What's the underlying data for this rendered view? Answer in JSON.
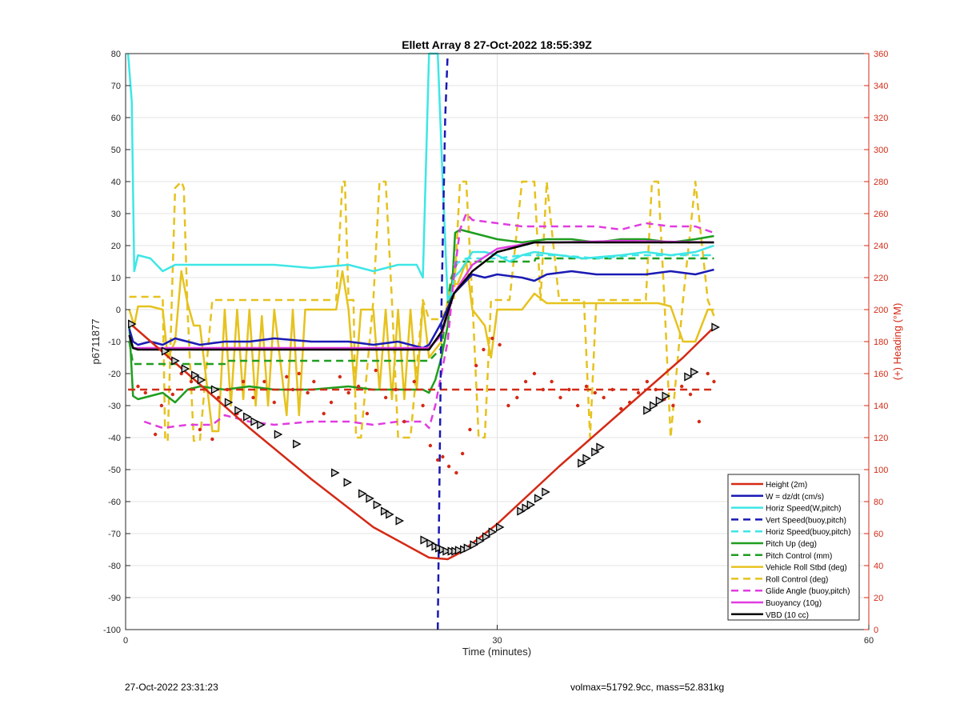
{
  "footer": {
    "timestamp": "27-Oct-2022 23:31:23",
    "vol_mass": "volmax=51792.9cc, mass=52.831kg"
  },
  "chart_data": {
    "type": "line",
    "title": "Ellett Array 8 27-Oct-2022 18:55:39Z",
    "xlabel": "Time (minutes)",
    "ylabel": "p6711877",
    "y2label": "(+) Heading (°M)",
    "xlim": [
      0,
      60
    ],
    "ylim": [
      -100,
      80
    ],
    "y2lim": [
      0,
      360
    ],
    "xticks": [
      0,
      30,
      60
    ],
    "yticks": [
      80,
      70,
      60,
      50,
      40,
      30,
      20,
      10,
      0,
      -10,
      -20,
      -30,
      -40,
      -50,
      -60,
      -70,
      -80,
      -90,
      -100
    ],
    "y2ticks": [
      360,
      340,
      320,
      300,
      280,
      260,
      240,
      220,
      200,
      180,
      160,
      140,
      120,
      100,
      80,
      60,
      40,
      20,
      0
    ],
    "grid": true,
    "legend_position": "bottom-right",
    "colors": {
      "red": "#d42a16",
      "blue": "#1a1ab4",
      "cyan": "#3ee6e6",
      "green": "#1f9e1f",
      "yellow": "#e6c21e",
      "magenta": "#e03ce0",
      "black": "#000000",
      "right_axis": "#d42a16"
    },
    "series": [
      {
        "name": "Height (2m)",
        "color": "#d42a16",
        "dash": "solid",
        "x": [
          0.4,
          5,
          10,
          15,
          20,
          24.5,
          26,
          27,
          30,
          35,
          40,
          45,
          47.5
        ],
        "y": [
          -4.5,
          -20,
          -37,
          -53,
          -68,
          -77.5,
          -78,
          -76,
          -67,
          -49,
          -32,
          -15,
          -5.5
        ]
      },
      {
        "name": "W = dz/dt (cm/s)",
        "color": "#1a1ab4",
        "dash": "solid",
        "x": [
          0.3,
          0.6,
          1,
          2,
          3,
          4,
          5,
          6,
          8,
          10,
          12,
          15,
          18,
          20,
          22,
          24,
          24.5,
          25.5,
          26.5,
          27.5,
          28,
          29,
          30,
          32,
          33,
          34,
          36,
          38,
          40,
          42,
          44,
          46,
          47.5
        ],
        "y": [
          -6,
          -10,
          -11,
          -10,
          -11,
          -9,
          -10,
          -11,
          -10,
          -10,
          -9,
          -10,
          -10,
          -11,
          -10,
          -12,
          -11,
          -4,
          5,
          9,
          11,
          10,
          11,
          10,
          9,
          11,
          12,
          11,
          11,
          11,
          12,
          11,
          12.5
        ]
      },
      {
        "name": "Horiz Speed(W,pitch)",
        "color": "#3ee6e6",
        "dash": "solid",
        "x": [
          0.2,
          0.5,
          0.7,
          1,
          2,
          3,
          4,
          6,
          8,
          10,
          12,
          15,
          18,
          20,
          22,
          23.5,
          24,
          24.5,
          24.8,
          25.2,
          25.6,
          26,
          26.3,
          26.5,
          27,
          27.5,
          28,
          29,
          30,
          31,
          32,
          33,
          35,
          37,
          40,
          42,
          44,
          46,
          47.5
        ],
        "y": [
          80,
          65,
          12,
          17,
          16,
          12,
          14,
          14,
          14,
          14,
          14,
          13,
          14,
          12,
          14,
          14,
          10,
          80,
          80,
          80,
          40,
          3,
          5,
          10,
          12,
          15,
          18,
          18,
          17,
          15,
          17,
          18,
          17,
          16,
          17,
          18,
          17,
          18,
          20
        ]
      },
      {
        "name": "Vert Speed(buoy,pitch)",
        "color": "#1a1ab4",
        "dash": "dashed",
        "x": [
          25.2,
          25.5,
          25.8,
          26
        ],
        "y": [
          -100,
          0,
          60,
          80
        ]
      },
      {
        "name": "Horiz Speed(buoy,pitch)",
        "color": "#3ee6e6",
        "dash": "dashed",
        "x": [
          26.5,
          27.5,
          28.5,
          30,
          32,
          35,
          38,
          41,
          44,
          47.5
        ],
        "y": [
          14,
          16,
          16,
          16,
          17,
          17,
          16,
          17,
          17,
          17
        ]
      },
      {
        "name": "Pitch Up (deg)",
        "color": "#1f9e1f",
        "dash": "solid",
        "x": [
          0.3,
          0.6,
          1,
          2,
          3,
          4,
          5,
          6,
          8,
          10,
          12,
          15,
          18,
          20,
          22,
          24,
          24.5,
          25,
          25.5,
          26,
          26.4,
          26.6,
          27,
          28,
          29,
          30,
          32,
          34,
          36,
          38,
          40,
          42,
          44,
          46,
          47.5
        ],
        "y": [
          -5,
          -27,
          -28,
          -27,
          -26,
          -29,
          -25,
          -24,
          -25,
          -24,
          -25,
          -25,
          -24,
          -25,
          -25,
          -25,
          -26,
          -22,
          -15,
          -5,
          10,
          24,
          25,
          24,
          23,
          22,
          21,
          22,
          22,
          21,
          22,
          22,
          21,
          22,
          23
        ]
      },
      {
        "name": "Pitch Control (mm)",
        "color": "#1f9e1f",
        "dash": "dashed",
        "x": [
          0.3,
          0.6,
          8,
          8.1,
          24.5,
          25.5,
          26.3,
          26.8,
          27,
          30,
          33,
          33.1,
          40,
          47.5
        ],
        "y": [
          -10,
          -17,
          -17,
          -16,
          -16,
          -12,
          10,
          15,
          15,
          15,
          15,
          16,
          16,
          16
        ]
      },
      {
        "name": "Vehicle Roll Stbd (deg)",
        "color": "#e6c21e",
        "dash": "solid",
        "x": [
          0.3,
          0.7,
          1,
          2,
          3,
          3.4,
          4,
          4.5,
          5,
          5.5,
          6,
          7,
          7.5,
          8,
          8.5,
          9,
          9.5,
          10,
          10.5,
          11,
          11.5,
          12,
          13,
          13.5,
          14,
          14.5,
          15,
          16,
          17,
          17.5,
          18,
          18.5,
          19,
          20,
          20.5,
          21,
          21.5,
          22,
          22.5,
          23,
          23.5,
          24,
          24.5,
          25.5,
          26.2,
          26.8,
          27.5,
          28,
          29,
          29.5,
          30,
          31,
          32,
          33,
          34,
          35,
          36,
          37,
          38,
          39,
          40,
          41,
          42,
          43,
          44,
          45,
          46,
          47,
          47.5
        ],
        "y": [
          0,
          -5,
          1,
          1,
          0,
          -15,
          -10,
          12,
          2,
          -5,
          -5,
          -38,
          -38,
          0,
          -30,
          0,
          -28,
          0,
          -30,
          -2,
          -30,
          0,
          -33,
          0,
          -33,
          0,
          0,
          0,
          0,
          12,
          0,
          -25,
          0,
          0,
          -25,
          0,
          -28,
          0,
          -28,
          0,
          -25,
          2,
          -15,
          -10,
          8,
          8,
          15,
          0,
          -5,
          -15,
          0,
          0,
          0,
          5,
          2,
          2,
          2,
          2,
          2,
          2,
          2,
          2,
          2,
          2,
          1,
          -10,
          -10,
          0,
          0
        ]
      },
      {
        "name": "Roll Control (deg)",
        "color": "#e6c21e",
        "dash": "dashed",
        "x": [
          0.3,
          1,
          1.5,
          3,
          3.2,
          3.4,
          4,
          4.5,
          4.7,
          5,
          5.5,
          6,
          7,
          7.5,
          8,
          8.5,
          9,
          10,
          11,
          12,
          13,
          14,
          15,
          16,
          17,
          17.5,
          17.7,
          18,
          18.4,
          18.6,
          19,
          20,
          20.5,
          21,
          21.5,
          22,
          23,
          24,
          24.5,
          25.5,
          26.2,
          26.5,
          27,
          27.5,
          28,
          28.5,
          29,
          29.5,
          30,
          31,
          32,
          33,
          33.5,
          34,
          35,
          36,
          37,
          37.5,
          38,
          39,
          40,
          41,
          42,
          42.5,
          43,
          43.5,
          44,
          45,
          46,
          47,
          47.5
        ],
        "y": [
          4,
          4,
          4,
          4,
          -41,
          -41,
          38,
          40,
          38,
          0,
          -41,
          -41,
          3,
          3,
          3,
          3,
          3,
          3,
          3,
          3,
          3,
          3,
          3,
          3,
          3,
          40,
          40,
          3,
          3,
          -40,
          -40,
          3,
          40,
          40,
          3,
          -40,
          -40,
          3,
          -3,
          -3,
          3,
          3,
          40,
          40,
          3,
          -40,
          -40,
          3,
          3,
          3,
          40,
          40,
          3,
          40,
          3,
          3,
          3,
          -40,
          3,
          3,
          3,
          3,
          3,
          40,
          40,
          3,
          -40,
          3,
          40,
          3,
          -2
        ]
      },
      {
        "name": "Glide Angle (buoy,pitch)",
        "color": "#e03ce0",
        "dash": "dashed",
        "x": [
          1.5,
          3,
          5,
          7,
          8,
          10,
          12,
          15,
          18,
          20,
          22,
          24,
          24.5,
          25,
          25.5,
          26,
          26.5,
          27,
          27.5,
          28,
          30,
          32,
          34,
          36,
          38,
          40,
          42,
          44,
          46,
          47.5
        ],
        "y": [
          -35,
          -37,
          -36,
          -36,
          -33,
          -35,
          -36,
          -35,
          -35,
          -36,
          -35,
          -35,
          -37,
          -30,
          -20,
          -10,
          10,
          25,
          30,
          28,
          27,
          26,
          26,
          26,
          26,
          25,
          27,
          26,
          26,
          24
        ]
      },
      {
        "name": "Buoyancy (10g)",
        "color": "#e03ce0",
        "dash": "solid",
        "x": [
          0.3,
          0.6,
          1,
          5,
          10,
          15,
          20,
          24.5,
          25.5,
          26.5,
          28,
          30,
          33,
          35,
          40,
          47.5
        ],
        "y": [
          -8,
          -12,
          -12,
          -12,
          -12,
          -12,
          -12,
          -12,
          -8,
          5,
          14,
          19,
          21,
          21,
          21.5,
          21
        ]
      },
      {
        "name": "VBD (10 cc)",
        "color": "#000000",
        "dash": "solid",
        "x": [
          0.3,
          0.6,
          1,
          5,
          10,
          15,
          20,
          24.5,
          25.5,
          26.5,
          28,
          29,
          30,
          31,
          33,
          35,
          40,
          47.5
        ],
        "y": [
          -8,
          -12,
          -12.5,
          -12.5,
          -12.5,
          -12.5,
          -12.5,
          -12.5,
          -7,
          5,
          12,
          15,
          18,
          19,
          21,
          21,
          21,
          21
        ]
      },
      {
        "name": "Heading",
        "color": "#d42a16",
        "dash": "dashed",
        "axis": "right",
        "x": [
          0.2,
          10,
          20,
          25,
          30,
          40,
          47.5
        ],
        "y": [
          150,
          150,
          150,
          150,
          150,
          150,
          150
        ]
      }
    ],
    "heading_points": {
      "color": "#d42a16",
      "axis": "right",
      "x": [
        1,
        1.6,
        2.4,
        2.9,
        3.8,
        4.5,
        5.3,
        6,
        7,
        7.5,
        8.2,
        9,
        9.5,
        10.3,
        11.2,
        12,
        13,
        13.5,
        14,
        14.7,
        15.2,
        16,
        16.6,
        17.3,
        18,
        18.8,
        19.5,
        20.2,
        21,
        21.8,
        22.5,
        23.3,
        24,
        24.6,
        25.2,
        25.6,
        26.1,
        26.7,
        27.2,
        27.8,
        28.3,
        28.9,
        29.6,
        30.2,
        30.9,
        31.6,
        32.3,
        33,
        33.7,
        34.4,
        35.1,
        35.8,
        36.5,
        37.2,
        37.9,
        38.6,
        39.3,
        40,
        40.7,
        41.4,
        42.1,
        42.8,
        43.5,
        44.2,
        44.9,
        45.6,
        46.3,
        47,
        47.5
      ],
      "y": [
        152,
        148,
        122,
        140,
        147,
        160,
        155,
        125,
        119,
        145,
        150,
        135,
        155,
        145,
        155,
        142,
        158,
        150,
        160,
        148,
        155,
        135,
        142,
        158,
        148,
        152,
        135,
        162,
        145,
        150,
        130,
        155,
        140,
        115,
        106,
        108,
        102,
        98,
        110,
        125,
        165,
        175,
        182,
        178,
        140,
        145,
        155,
        160,
        150,
        155,
        145,
        150,
        140,
        152,
        148,
        145,
        150,
        138,
        142,
        148,
        155,
        150,
        144,
        140,
        152,
        147,
        130,
        160,
        155
      ]
    },
    "height_markers": {
      "x": [
        0.5,
        3.2,
        4,
        4.8,
        5.6,
        6.1,
        7.2,
        8.3,
        9.1,
        9.8,
        10.4,
        10.9,
        12.3,
        13.8,
        16.9,
        17.9,
        19.1,
        19.7,
        20.3,
        20.9,
        21.3,
        22.1,
        24.1,
        24.6,
        25,
        25.3,
        25.6,
        25.9,
        26.3,
        26.6,
        26.9,
        27.3,
        27.6,
        28.1,
        28.6,
        29.1,
        29.6,
        30.2,
        31.9,
        32.3,
        32.7,
        33.3,
        33.9,
        36.8,
        37.2,
        37.9,
        38.3,
        42.1,
        42.6,
        43.1,
        43.6,
        45.4,
        45.9,
        47.6
      ],
      "y": [
        -4.5,
        -13,
        -16,
        -18.5,
        -20.5,
        -22,
        -25,
        -29,
        -31.5,
        -33.5,
        -35,
        -36,
        -39,
        -42,
        -51,
        -54,
        -57.5,
        -59,
        -61,
        -63,
        -64,
        -66,
        -72,
        -73,
        -74,
        -74.5,
        -75,
        -75.5,
        -75.5,
        -75.5,
        -75.2,
        -75,
        -74.5,
        -73.5,
        -72.3,
        -71,
        -69.5,
        -68,
        -63,
        -62,
        -61,
        -59,
        -57,
        -48,
        -46.5,
        -44.5,
        -43,
        -31.5,
        -30,
        -28.5,
        -27,
        -21,
        -19.5,
        -5.5
      ]
    }
  }
}
